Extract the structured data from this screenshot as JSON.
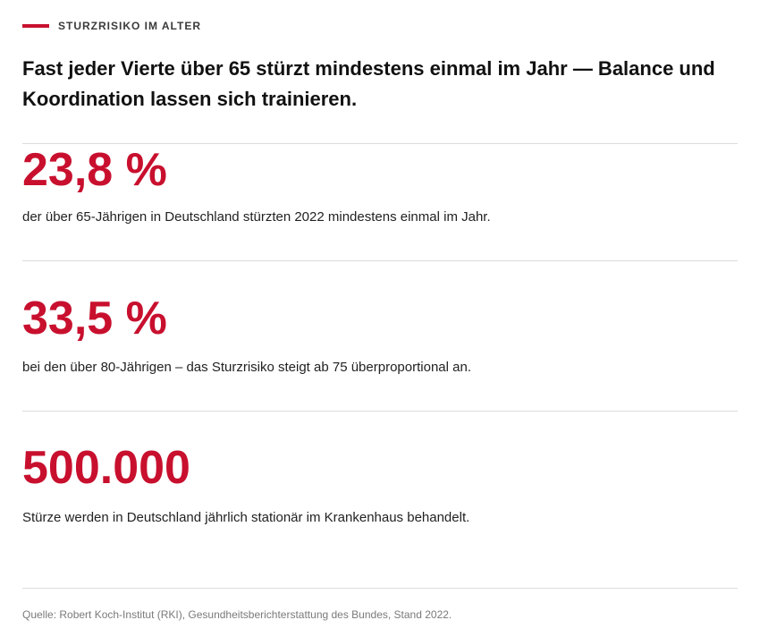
{
  "kicker": {
    "text": "STURZRISIKO IM ALTER",
    "accent_color": "#c8102e"
  },
  "headline": "Fast jeder Vierte über 65 stürzt mindestens einmal im Jahr — Balance und Koordination lassen sich trainieren.",
  "stats": [
    {
      "value": "23,8 %",
      "description": "der über 65-Jährigen in Deutschland stürzten 2022 mindestens einmal im Jahr."
    },
    {
      "value": "33,5 %",
      "description": "bei den über 80-Jährigen – das Sturzrisiko steigt ab 75 überproportional an."
    },
    {
      "value": "500.000",
      "description": "Stürze werden in Deutschland jährlich stationär im Krankenhaus behandelt."
    }
  ],
  "source": "Quelle: Robert Koch-Institut (RKI), Gesundheitsberichterstattung des Bundes, Stand 2022.",
  "colors": {
    "stat_value": "#c8102e",
    "divider": "#dcdcdc",
    "source_text": "#7a7a7a"
  }
}
